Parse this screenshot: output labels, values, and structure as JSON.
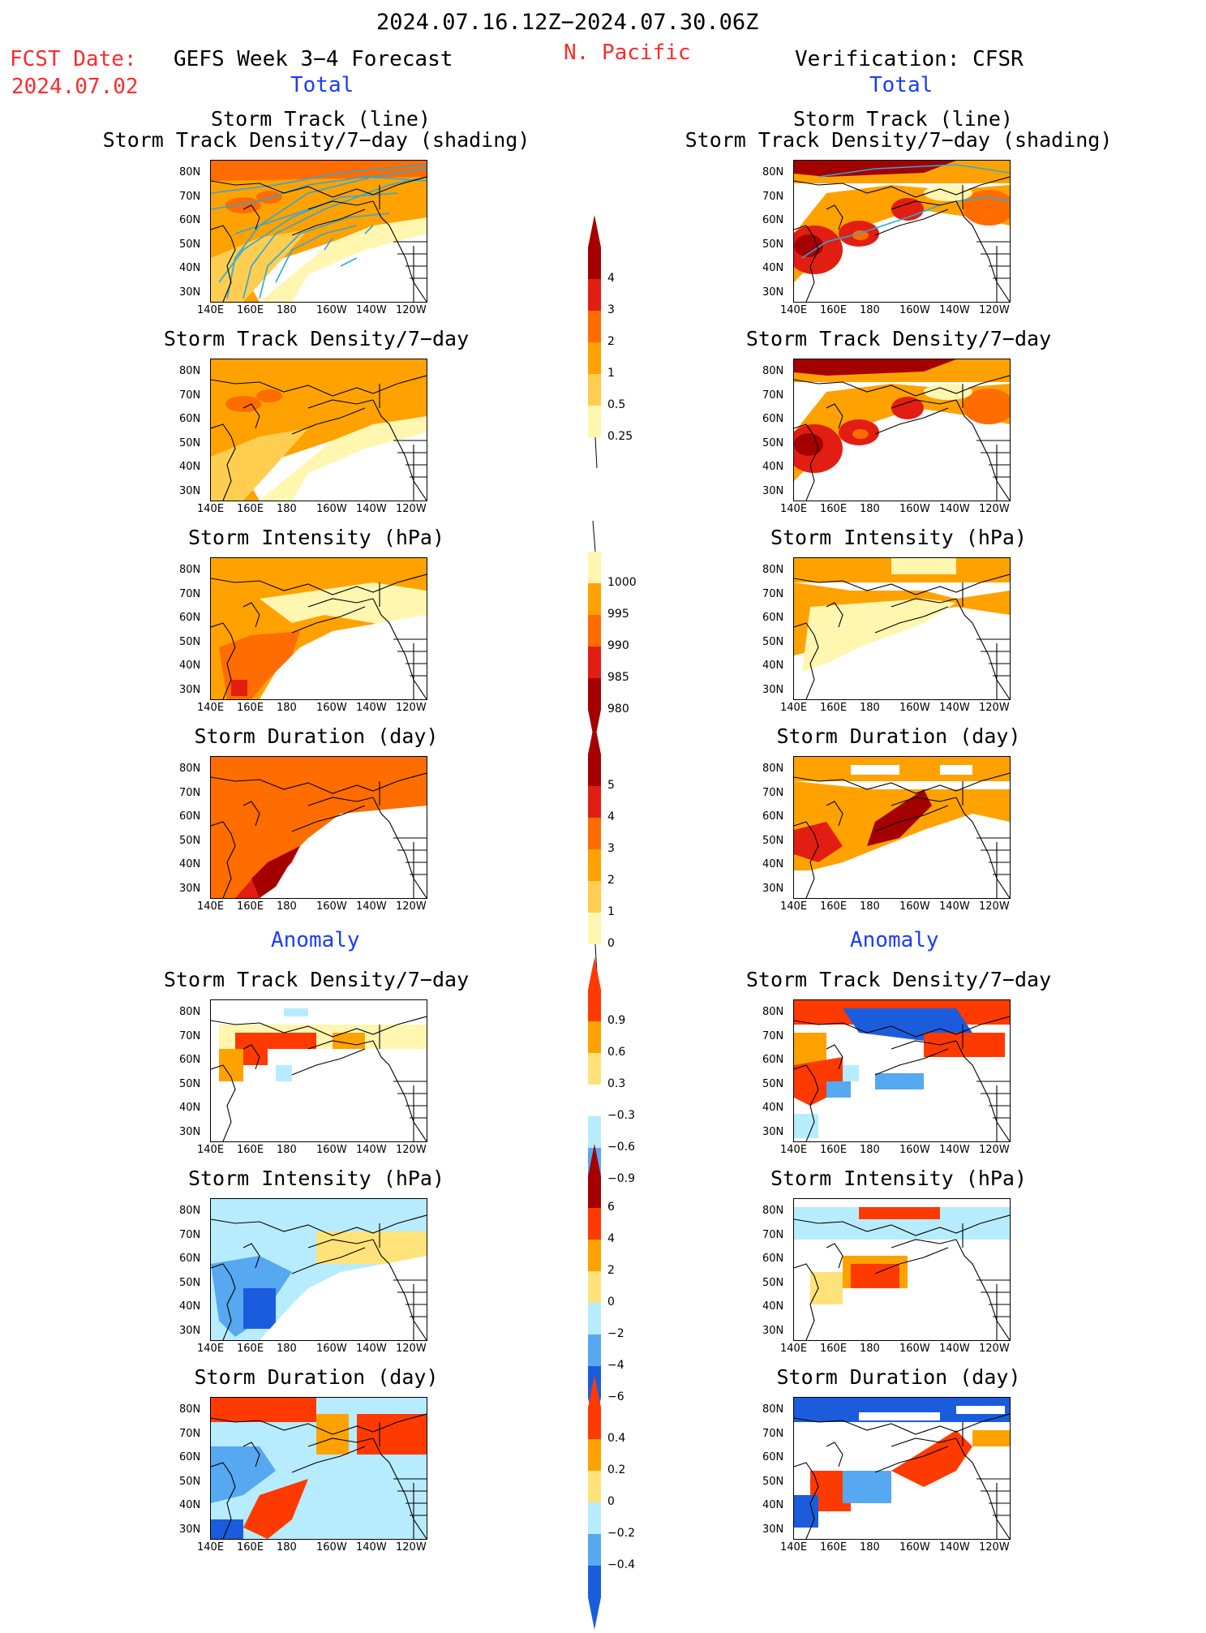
{
  "header": {
    "date_range": "2024.07.16.12Z−2024.07.30.06Z",
    "fcst_label": "FCST Date:",
    "fcst_date": "2024.07.02",
    "left_title": "GEFS Week 3−4 Forecast",
    "region": "N. Pacific",
    "right_title": "Verification: CFSR",
    "total_label": "Total",
    "anomaly_label": "Anomaly"
  },
  "axes": {
    "lat_labels": [
      "80N",
      "70N",
      "60N",
      "50N",
      "40N",
      "30N"
    ],
    "lon_labels": [
      "140E",
      "160E",
      "180",
      "160W",
      "140W",
      "120W"
    ]
  },
  "panel_titles": {
    "storm_track_line": "Storm Track (line)",
    "storm_track_shading": "Storm Track Density/7−day (shading)",
    "density": "Storm Track Density/7−day",
    "intensity": "Storm Intensity (hPa)",
    "duration": "Storm Duration (day)"
  },
  "colorbars": {
    "density": {
      "labels": [
        "4",
        "3",
        "2",
        "1",
        "0.5",
        "0.25"
      ],
      "colors": [
        "#a50000",
        "#e21e12",
        "#ff6c00",
        "#ffa200",
        "#ffce50",
        "#fff6b0"
      ]
    },
    "intensity": {
      "labels": [
        "1000",
        "995",
        "990",
        "985",
        "980"
      ],
      "colors": [
        "#fff6b0",
        "#ffa200",
        "#ff6c00",
        "#e21e12",
        "#a50000"
      ]
    },
    "duration": {
      "labels": [
        "5",
        "4",
        "3",
        "2",
        "1",
        "0"
      ],
      "colors": [
        "#a50000",
        "#e21e12",
        "#ff6c00",
        "#ffa200",
        "#ffce50",
        "#fff6b0"
      ]
    },
    "density_anom": {
      "labels": [
        "0.9",
        "0.6",
        "0.3",
        "−0.3",
        "−0.6",
        "−0.9"
      ],
      "colors": [
        "#ff3a00",
        "#ffa200",
        "#ffe37a",
        "#ffffff",
        "#b7ecff",
        "#56a8f0",
        "#1a5cdc"
      ]
    },
    "intensity_anom": {
      "labels": [
        "6",
        "4",
        "2",
        "0",
        "−2",
        "−4",
        "−6"
      ],
      "colors": [
        "#a50000",
        "#ff3a00",
        "#ffa200",
        "#ffe37a",
        "#b7ecff",
        "#56a8f0",
        "#1a5cdc"
      ]
    },
    "duration_anom": {
      "labels": [
        "0.4",
        "0.2",
        "0",
        "−0.2",
        "−0.4"
      ],
      "colors": [
        "#ff3a00",
        "#ffa200",
        "#ffe37a",
        "#b7ecff",
        "#56a8f0",
        "#1a5cdc"
      ]
    }
  },
  "fields": {
    "colors_total": {
      "dark": "#a50000",
      "red": "#e21e12",
      "orangered": "#ff6c00",
      "orange": "#ffa200",
      "lightorange": "#ffce50",
      "yellow": "#fff6b0"
    },
    "colors_anom": {
      "red": "#ff3a00",
      "orange": "#ffa200",
      "yellow": "#ffe37a",
      "cyan": "#b7ecff",
      "lightblue": "#56a8f0",
      "blue": "#1a5cdc"
    },
    "track_line_color": "#2aa8e0"
  }
}
